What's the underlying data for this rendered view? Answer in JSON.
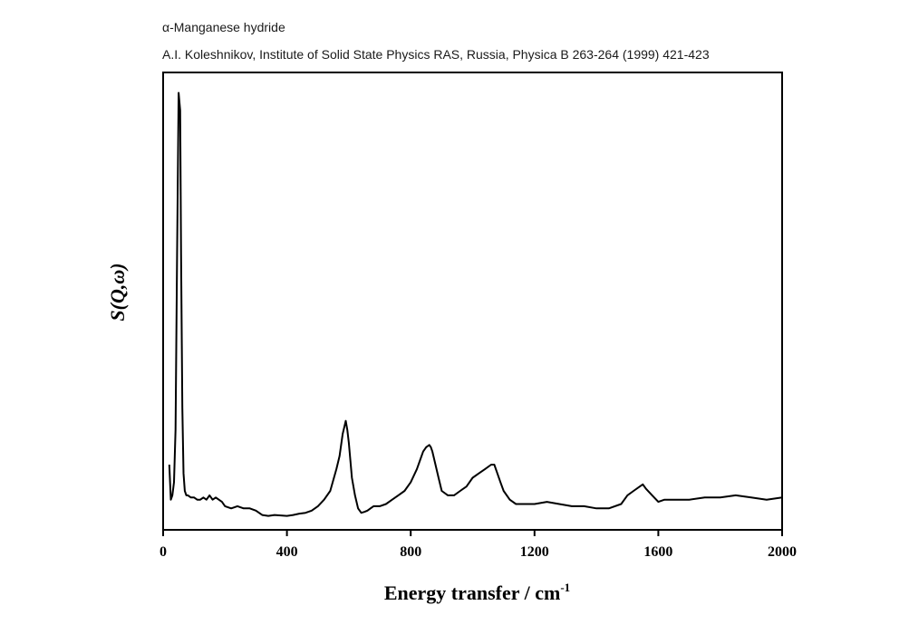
{
  "chart_data": {
    "type": "line",
    "title": "α-Manganese hydride",
    "subtitle": "A.I. Koleshnikov, Institute of Solid State Physics RAS, Russia, Physica B 263-264 (1999) 421-423",
    "xlabel": "Energy transfer / cm",
    "xlabel_superscript": "-1",
    "ylabel": "S(Q,ω)",
    "xlim": [
      0,
      2000
    ],
    "ylim": [
      0,
      1.0
    ],
    "xticks": [
      0,
      400,
      800,
      1200,
      1600,
      2000
    ],
    "xtick_labels": [
      "0",
      "400",
      "800",
      "1200",
      "1600",
      "2000"
    ],
    "y_tick_labels_shown": false,
    "grid": false,
    "series": [
      {
        "color": "#000000",
        "x": [
          20,
          25,
          30,
          35,
          40,
          45,
          50,
          55,
          58,
          62,
          66,
          70,
          75,
          80,
          90,
          100,
          110,
          120,
          130,
          140,
          150,
          160,
          170,
          180,
          190,
          200,
          220,
          240,
          260,
          280,
          300,
          320,
          340,
          360,
          380,
          400,
          420,
          440,
          460,
          480,
          500,
          520,
          540,
          560,
          570,
          580,
          590,
          595,
          600,
          605,
          610,
          620,
          630,
          640,
          650,
          660,
          670,
          680,
          700,
          720,
          740,
          760,
          780,
          800,
          820,
          840,
          850,
          860,
          865,
          870,
          880,
          890,
          900,
          920,
          940,
          960,
          980,
          1000,
          1020,
          1040,
          1060,
          1070,
          1080,
          1090,
          1100,
          1120,
          1140,
          1160,
          1180,
          1200,
          1240,
          1280,
          1320,
          1360,
          1400,
          1440,
          1480,
          1500,
          1520,
          1540,
          1550,
          1560,
          1580,
          1600,
          1620,
          1650,
          1700,
          1750,
          1800,
          1850,
          1900,
          1950,
          2000
        ],
        "y": [
          0.12,
          0.04,
          0.05,
          0.08,
          0.2,
          0.6,
          0.97,
          0.93,
          0.6,
          0.25,
          0.1,
          0.06,
          0.05,
          0.05,
          0.045,
          0.045,
          0.04,
          0.04,
          0.045,
          0.04,
          0.05,
          0.04,
          0.045,
          0.04,
          0.035,
          0.025,
          0.02,
          0.025,
          0.02,
          0.02,
          0.015,
          0.005,
          0.003,
          0.005,
          0.004,
          0.003,
          0.005,
          0.008,
          0.01,
          0.015,
          0.025,
          0.04,
          0.06,
          0.11,
          0.14,
          0.19,
          0.22,
          0.2,
          0.17,
          0.13,
          0.09,
          0.05,
          0.02,
          0.01,
          0.012,
          0.015,
          0.02,
          0.025,
          0.025,
          0.03,
          0.04,
          0.05,
          0.06,
          0.08,
          0.11,
          0.15,
          0.16,
          0.165,
          0.16,
          0.15,
          0.12,
          0.09,
          0.06,
          0.05,
          0.05,
          0.06,
          0.07,
          0.09,
          0.1,
          0.11,
          0.12,
          0.12,
          0.1,
          0.08,
          0.06,
          0.04,
          0.03,
          0.03,
          0.03,
          0.03,
          0.035,
          0.03,
          0.025,
          0.025,
          0.02,
          0.02,
          0.03,
          0.05,
          0.06,
          0.07,
          0.075,
          0.065,
          0.05,
          0.035,
          0.04,
          0.04,
          0.04,
          0.045,
          0.045,
          0.05,
          0.045,
          0.04,
          0.045
        ]
      }
    ]
  }
}
